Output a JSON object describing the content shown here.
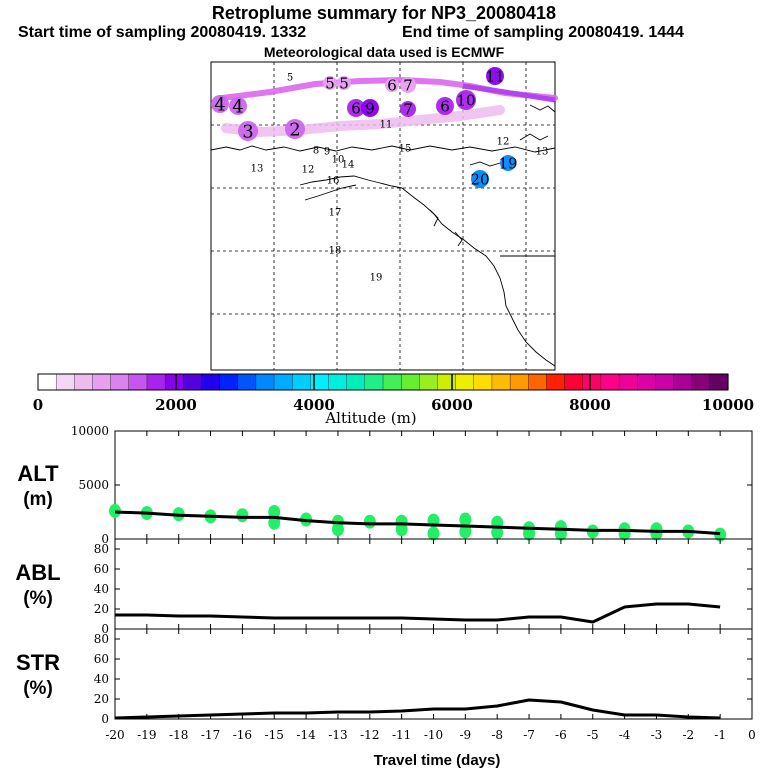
{
  "header": {
    "title": "Retroplume summary for NP3_20080418",
    "start": "Start time of sampling 20080419.  1332",
    "end": "End time of sampling 20080419.  1444",
    "met": "Meteorological data used is ECMWF"
  },
  "colors": {
    "scale": [
      "#ffffff",
      "#f6d6f6",
      "#eebbee",
      "#e6a0ee",
      "#dc82ee",
      "#c855f0",
      "#aa22ee",
      "#8800ee",
      "#5500dd",
      "#2200ee",
      "#0022ff",
      "#0055ff",
      "#0088ff",
      "#00aaff",
      "#00ccff",
      "#00eeff",
      "#00eedd",
      "#00eebb",
      "#22ee88",
      "#44ee55",
      "#66ee33",
      "#99ee22",
      "#ccee00",
      "#eeee00",
      "#ffdd00",
      "#ffbb00",
      "#ff9900",
      "#ff6600",
      "#ff2200",
      "#ff0033",
      "#ff0066",
      "#ff0088",
      "#ee0099",
      "#dd00aa",
      "#cc00aa",
      "#aa0099",
      "#880077",
      "#660066"
    ],
    "line_magenta": "#dd66ee",
    "green_marker": "#22ee66"
  },
  "colorbar": {
    "ticks": [
      "0",
      "2000",
      "4000",
      "6000",
      "8000",
      "10000"
    ],
    "label": "Altitude (m)"
  },
  "map": {
    "day_labels": [
      {
        "t": "4",
        "size": "lg",
        "color": "#cc66ee"
      },
      {
        "t": "4",
        "size": "lg",
        "color": "#cc66ee"
      },
      {
        "t": "3",
        "size": "lg",
        "color": "#cc66ee"
      },
      {
        "t": "2",
        "size": "lg",
        "color": "#cc66ee"
      },
      {
        "t": "5",
        "size": "md",
        "color": "#e6a0ee"
      },
      {
        "t": "5",
        "size": "md",
        "color": "#e6a0ee"
      },
      {
        "t": "6",
        "size": "md",
        "color": "#e6a0ee"
      },
      {
        "t": "7",
        "size": "md",
        "color": "#e6a0ee"
      },
      {
        "t": "6",
        "size": "md",
        "color": "#aa22ee"
      },
      {
        "t": "9",
        "size": "md",
        "color": "#8800ee"
      },
      {
        "t": "7",
        "size": "md",
        "color": "#aa22ee"
      },
      {
        "t": "6",
        "size": "md",
        "color": "#aa22ee"
      },
      {
        "t": "10",
        "size": "md",
        "color": "#aa22ee"
      },
      {
        "t": "11",
        "size": "md",
        "color": "#8800ee"
      },
      {
        "t": "19",
        "size": "md",
        "color": "#0088ff"
      },
      {
        "t": "20",
        "size": "md",
        "color": "#0088ff"
      },
      {
        "t": "5",
        "size": "sm",
        "color": ""
      },
      {
        "t": "8",
        "size": "sm",
        "color": ""
      },
      {
        "t": "9",
        "size": "sm",
        "color": ""
      },
      {
        "t": "10",
        "size": "sm",
        "color": ""
      },
      {
        "t": "11",
        "size": "sm",
        "color": ""
      },
      {
        "t": "12",
        "size": "sm",
        "color": ""
      },
      {
        "t": "13",
        "size": "sm",
        "color": ""
      },
      {
        "t": "14",
        "size": "sm",
        "color": ""
      },
      {
        "t": "15",
        "size": "sm",
        "color": ""
      },
      {
        "t": "16",
        "size": "sm",
        "color": ""
      },
      {
        "t": "17",
        "size": "sm",
        "color": ""
      },
      {
        "t": "18",
        "size": "sm",
        "color": ""
      },
      {
        "t": "19",
        "size": "sm",
        "color": ""
      },
      {
        "t": "12",
        "size": "sm",
        "color": ""
      },
      {
        "t": "13",
        "size": "sm",
        "color": ""
      }
    ]
  },
  "chart_data": [
    {
      "type": "line",
      "name": "ALT",
      "ylabel": "ALT",
      "yunit": "(m)",
      "xlabel": "Travel time (days)",
      "xlim": [
        -20,
        0
      ],
      "ylim": [
        0,
        10000
      ],
      "yticks": [
        "0",
        "5000",
        "10000"
      ],
      "x": [
        -20,
        -19,
        -18,
        -17,
        -16,
        -15,
        -14,
        -13,
        -12,
        -11,
        -10,
        -9,
        -8,
        -7,
        -6,
        -5,
        -4,
        -3,
        -2,
        -1
      ],
      "values": [
        2500,
        2400,
        2200,
        2100,
        2000,
        2000,
        1700,
        1500,
        1400,
        1400,
        1300,
        1200,
        1100,
        1000,
        900,
        800,
        800,
        700,
        700,
        500
      ],
      "markers": [
        {
          "x": -20,
          "y": 2600
        },
        {
          "x": -19,
          "y": 2400
        },
        {
          "x": -18,
          "y": 2300
        },
        {
          "x": -17,
          "y": 2100
        },
        {
          "x": -16,
          "y": 2200
        },
        {
          "x": -15,
          "y": 2500
        },
        {
          "x": -15,
          "y": 1500
        },
        {
          "x": -14,
          "y": 1800
        },
        {
          "x": -13,
          "y": 1600
        },
        {
          "x": -13,
          "y": 900
        },
        {
          "x": -12,
          "y": 1600
        },
        {
          "x": -11,
          "y": 1600
        },
        {
          "x": -11,
          "y": 900
        },
        {
          "x": -10,
          "y": 1700
        },
        {
          "x": -10,
          "y": 500
        },
        {
          "x": -9,
          "y": 1800
        },
        {
          "x": -9,
          "y": 700
        },
        {
          "x": -8,
          "y": 1500
        },
        {
          "x": -8,
          "y": 600
        },
        {
          "x": -7,
          "y": 1000
        },
        {
          "x": -7,
          "y": 500
        },
        {
          "x": -6,
          "y": 1100
        },
        {
          "x": -6,
          "y": 500
        },
        {
          "x": -5,
          "y": 700
        },
        {
          "x": -4,
          "y": 900
        },
        {
          "x": -4,
          "y": 500
        },
        {
          "x": -3,
          "y": 900
        },
        {
          "x": -3,
          "y": 500
        },
        {
          "x": -2,
          "y": 700
        },
        {
          "x": -1,
          "y": 400
        }
      ]
    },
    {
      "type": "line",
      "name": "ABL",
      "ylabel": "ABL",
      "yunit": "(%)",
      "xlim": [
        -20,
        0
      ],
      "ylim": [
        0,
        90
      ],
      "yticks": [
        "0",
        "20",
        "40",
        "60",
        "80"
      ],
      "x": [
        -20,
        -19,
        -18,
        -17,
        -16,
        -15,
        -14,
        -13,
        -12,
        -11,
        -10,
        -9,
        -8,
        -7,
        -6,
        -5,
        -4,
        -3,
        -2,
        -1
      ],
      "values": [
        14,
        14,
        13,
        13,
        12,
        11,
        11,
        11,
        11,
        11,
        10,
        9,
        9,
        12,
        12,
        7,
        22,
        25,
        25,
        22
      ]
    },
    {
      "type": "line",
      "name": "STR",
      "ylabel": "STR",
      "yunit": "(%)",
      "xlim": [
        -20,
        0
      ],
      "ylim": [
        0,
        90
      ],
      "yticks": [
        "0",
        "20",
        "40",
        "60",
        "80"
      ],
      "xticks": [
        "-20",
        "-19",
        "-18",
        "-17",
        "-16",
        "-15",
        "-14",
        "-13",
        "-12",
        "-11",
        "-10",
        "-9",
        "-8",
        "-7",
        "-6",
        "-5",
        "-4",
        "-3",
        "-2",
        "-1",
        "0"
      ],
      "x": [
        -20,
        -19,
        -18,
        -17,
        -16,
        -15,
        -14,
        -13,
        -12,
        -11,
        -10,
        -9,
        -8,
        -7,
        -6,
        -5,
        -4,
        -3,
        -2,
        -1
      ],
      "values": [
        1,
        2,
        3,
        4,
        5,
        6,
        6,
        7,
        7,
        8,
        10,
        10,
        13,
        19,
        17,
        9,
        4,
        4,
        2,
        1
      ]
    }
  ]
}
